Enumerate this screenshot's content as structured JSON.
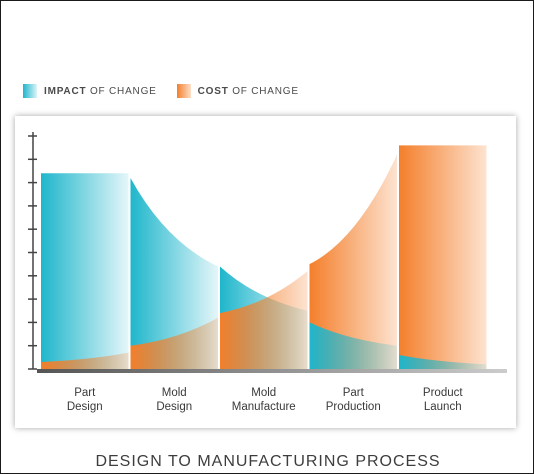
{
  "page_title": "DESIGN TO MANUFACTURING PROCESS",
  "legend": [
    {
      "bold": "IMPACT",
      "rest": " OF CHANGE",
      "color": "#1fb6cc"
    },
    {
      "bold": "COST",
      "rest": " OF CHANGE",
      "color": "#f47f2b"
    }
  ],
  "chart_data": {
    "type": "area",
    "categories": [
      "Part Design",
      "Mold Design",
      "Mold Manufacture",
      "Part Production",
      "Product Launch"
    ],
    "category_labels": [
      [
        "Part",
        "Design"
      ],
      [
        "Mold",
        "Design"
      ],
      [
        "Mold",
        "Manufacture"
      ],
      [
        "Part",
        "Production"
      ],
      [
        "Product",
        "Launch"
      ]
    ],
    "series": [
      {
        "name": "IMPACT OF CHANGE",
        "color": "#1fb6cc",
        "values": [
          [
            84,
            84
          ],
          [
            82,
            44
          ],
          [
            44,
            25
          ],
          [
            20,
            10
          ],
          [
            6,
            2
          ]
        ]
      },
      {
        "name": "COST OF CHANGE",
        "color": "#f47f2b",
        "values": [
          [
            3,
            7
          ],
          [
            10,
            22
          ],
          [
            24,
            42
          ],
          [
            45,
            92
          ],
          [
            96,
            96
          ]
        ]
      }
    ],
    "ylim": [
      0,
      100
    ],
    "y_ticks": 11,
    "grid": false,
    "legend_position": "top-left"
  }
}
